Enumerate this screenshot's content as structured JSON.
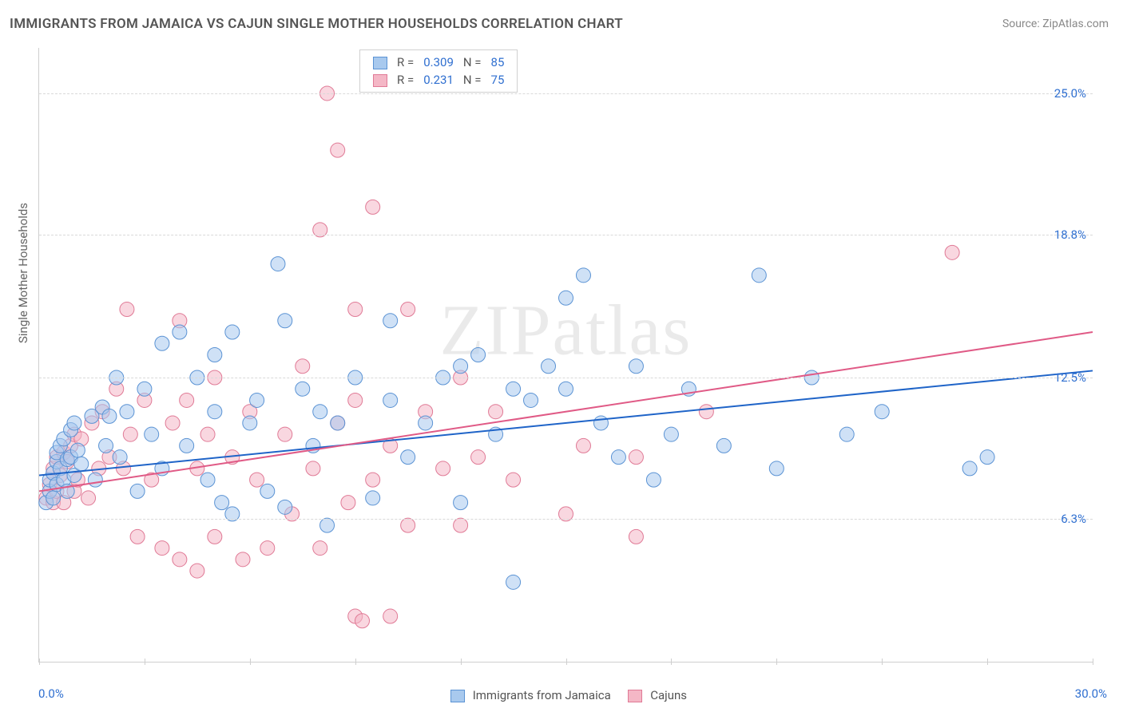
{
  "title": "IMMIGRANTS FROM JAMAICA VS CAJUN SINGLE MOTHER HOUSEHOLDS CORRELATION CHART",
  "source_label": "Source: ",
  "source_name": "ZipAtlas.com",
  "watermark": "ZIPatlas",
  "y_axis_label": "Single Mother Households",
  "x_min_label": "0.0%",
  "x_max_label": "30.0%",
  "chart": {
    "type": "scatter",
    "xlim": [
      0,
      30
    ],
    "ylim": [
      0,
      27
    ],
    "x_ticks": [
      0,
      3,
      6,
      9,
      12,
      15,
      18,
      21,
      24,
      27,
      30
    ],
    "y_gridlines": [
      {
        "value": 6.3,
        "label": "6.3%"
      },
      {
        "value": 12.5,
        "label": "12.5%"
      },
      {
        "value": 18.8,
        "label": "18.8%"
      },
      {
        "value": 25.0,
        "label": "25.0%"
      }
    ],
    "background_color": "#ffffff",
    "grid_color": "#d9d9d9",
    "axis_color": "#cfcfcf",
    "series": [
      {
        "name": "Immigrants from Jamaica",
        "r_value": "0.309",
        "n_value": "85",
        "marker_fill": "#a8c9ee",
        "marker_stroke": "#5b93d4",
        "marker_fill_opacity": 0.55,
        "marker_radius": 9,
        "line_color": "#1f64c8",
        "line_width": 2,
        "trend": {
          "x1": 0,
          "y1": 8.2,
          "x2": 30,
          "y2": 12.8
        },
        "points": [
          [
            0.2,
            7.0
          ],
          [
            0.3,
            7.5
          ],
          [
            0.3,
            8.0
          ],
          [
            0.4,
            8.3
          ],
          [
            0.4,
            7.2
          ],
          [
            0.5,
            8.8
          ],
          [
            0.5,
            7.8
          ],
          [
            0.5,
            9.2
          ],
          [
            0.6,
            8.5
          ],
          [
            0.6,
            9.5
          ],
          [
            0.7,
            8.0
          ],
          [
            0.7,
            9.8
          ],
          [
            0.8,
            7.5
          ],
          [
            0.8,
            8.9
          ],
          [
            0.9,
            10.2
          ],
          [
            0.9,
            9.0
          ],
          [
            1.0,
            8.2
          ],
          [
            1.0,
            10.5
          ],
          [
            1.1,
            9.3
          ],
          [
            1.2,
            8.7
          ],
          [
            1.5,
            10.8
          ],
          [
            1.6,
            8.0
          ],
          [
            1.8,
            11.2
          ],
          [
            1.9,
            9.5
          ],
          [
            2.0,
            10.8
          ],
          [
            2.2,
            12.5
          ],
          [
            2.3,
            9.0
          ],
          [
            2.5,
            11.0
          ],
          [
            2.8,
            7.5
          ],
          [
            3.0,
            12.0
          ],
          [
            3.2,
            10.0
          ],
          [
            3.5,
            14.0
          ],
          [
            3.5,
            8.5
          ],
          [
            4.0,
            14.5
          ],
          [
            4.2,
            9.5
          ],
          [
            4.5,
            12.5
          ],
          [
            4.8,
            8.0
          ],
          [
            5.0,
            13.5
          ],
          [
            5.0,
            11.0
          ],
          [
            5.2,
            7.0
          ],
          [
            5.5,
            14.5
          ],
          [
            5.5,
            6.5
          ],
          [
            6.0,
            10.5
          ],
          [
            6.2,
            11.5
          ],
          [
            6.5,
            7.5
          ],
          [
            6.8,
            17.5
          ],
          [
            7.0,
            15.0
          ],
          [
            7.0,
            6.8
          ],
          [
            7.5,
            12.0
          ],
          [
            7.8,
            9.5
          ],
          [
            8.0,
            11.0
          ],
          [
            8.2,
            6.0
          ],
          [
            8.5,
            10.5
          ],
          [
            9.0,
            12.5
          ],
          [
            9.5,
            7.2
          ],
          [
            10.0,
            11.5
          ],
          [
            10.0,
            15.0
          ],
          [
            10.5,
            9.0
          ],
          [
            11.0,
            10.5
          ],
          [
            11.5,
            12.5
          ],
          [
            12.0,
            13.0
          ],
          [
            12.0,
            7.0
          ],
          [
            12.5,
            13.5
          ],
          [
            13.0,
            10.0
          ],
          [
            13.5,
            12.0
          ],
          [
            13.5,
            3.5
          ],
          [
            14.0,
            11.5
          ],
          [
            14.5,
            13.0
          ],
          [
            15.0,
            12.0
          ],
          [
            15.0,
            16.0
          ],
          [
            15.5,
            17.0
          ],
          [
            16.0,
            10.5
          ],
          [
            16.5,
            9.0
          ],
          [
            17.0,
            13.0
          ],
          [
            17.5,
            8.0
          ],
          [
            18.0,
            10.0
          ],
          [
            18.5,
            12.0
          ],
          [
            19.5,
            9.5
          ],
          [
            20.5,
            17.0
          ],
          [
            21.0,
            8.5
          ],
          [
            22.0,
            12.5
          ],
          [
            23.0,
            10.0
          ],
          [
            24.0,
            11.0
          ],
          [
            26.5,
            8.5
          ],
          [
            27.0,
            9.0
          ]
        ]
      },
      {
        "name": "Cajuns",
        "r_value": "0.231",
        "n_value": "75",
        "marker_fill": "#f4b7c6",
        "marker_stroke": "#e07a96",
        "marker_fill_opacity": 0.55,
        "marker_radius": 9,
        "line_color": "#e05a86",
        "line_width": 2,
        "trend": {
          "x1": 0,
          "y1": 7.5,
          "x2": 30,
          "y2": 14.5
        },
        "points": [
          [
            0.2,
            7.2
          ],
          [
            0.3,
            7.8
          ],
          [
            0.4,
            7.0
          ],
          [
            0.4,
            8.5
          ],
          [
            0.5,
            9.0
          ],
          [
            0.5,
            7.5
          ],
          [
            0.6,
            8.2
          ],
          [
            0.7,
            9.2
          ],
          [
            0.7,
            7.0
          ],
          [
            0.8,
            8.8
          ],
          [
            0.9,
            9.5
          ],
          [
            1.0,
            7.5
          ],
          [
            1.0,
            10.0
          ],
          [
            1.1,
            8.0
          ],
          [
            1.2,
            9.8
          ],
          [
            1.4,
            7.2
          ],
          [
            1.5,
            10.5
          ],
          [
            1.7,
            8.5
          ],
          [
            1.8,
            11.0
          ],
          [
            2.0,
            9.0
          ],
          [
            2.2,
            12.0
          ],
          [
            2.4,
            8.5
          ],
          [
            2.5,
            15.5
          ],
          [
            2.6,
            10.0
          ],
          [
            2.8,
            5.5
          ],
          [
            3.0,
            11.5
          ],
          [
            3.2,
            8.0
          ],
          [
            3.5,
            5.0
          ],
          [
            3.8,
            10.5
          ],
          [
            4.0,
            15.0
          ],
          [
            4.0,
            4.5
          ],
          [
            4.2,
            11.5
          ],
          [
            4.5,
            8.5
          ],
          [
            4.5,
            4.0
          ],
          [
            4.8,
            10.0
          ],
          [
            5.0,
            5.5
          ],
          [
            5.0,
            12.5
          ],
          [
            5.5,
            9.0
          ],
          [
            5.8,
            4.5
          ],
          [
            6.0,
            11.0
          ],
          [
            6.2,
            8.0
          ],
          [
            6.5,
            5.0
          ],
          [
            7.0,
            10.0
          ],
          [
            7.2,
            6.5
          ],
          [
            7.5,
            13.0
          ],
          [
            7.8,
            8.5
          ],
          [
            8.0,
            19.0
          ],
          [
            8.0,
            5.0
          ],
          [
            8.2,
            25.0
          ],
          [
            8.5,
            10.5
          ],
          [
            8.5,
            22.5
          ],
          [
            8.8,
            7.0
          ],
          [
            9.0,
            2.0
          ],
          [
            9.0,
            11.5
          ],
          [
            9.0,
            15.5
          ],
          [
            9.2,
            1.8
          ],
          [
            9.5,
            8.0
          ],
          [
            9.5,
            20.0
          ],
          [
            10.0,
            2.0
          ],
          [
            10.0,
            9.5
          ],
          [
            10.5,
            6.0
          ],
          [
            10.5,
            15.5
          ],
          [
            11.0,
            11.0
          ],
          [
            11.5,
            8.5
          ],
          [
            12.0,
            12.5
          ],
          [
            12.0,
            6.0
          ],
          [
            12.5,
            9.0
          ],
          [
            13.0,
            11.0
          ],
          [
            13.5,
            8.0
          ],
          [
            15.0,
            6.5
          ],
          [
            15.5,
            9.5
          ],
          [
            17.0,
            9.0
          ],
          [
            17.0,
            5.5
          ],
          [
            19.0,
            11.0
          ],
          [
            26.0,
            18.0
          ]
        ]
      }
    ]
  },
  "legend_r_label": "R =",
  "legend_n_label": "N ="
}
